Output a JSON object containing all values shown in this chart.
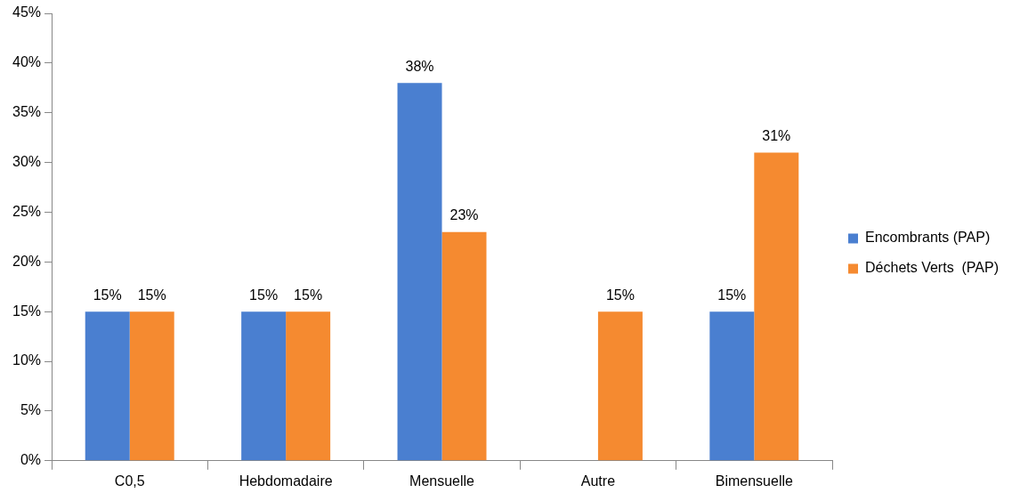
{
  "chart_data": {
    "type": "bar",
    "categories": [
      "C0,5",
      "Hebdomadaire",
      "Mensuelle",
      "Autre",
      "Bimensuelle"
    ],
    "series": [
      {
        "name": "Encombrants (PAP)",
        "color": "#4a7fd0",
        "values": [
          15,
          15,
          38,
          null,
          15
        ],
        "value_labels": [
          "15%",
          "15%",
          "38%",
          null,
          "15%"
        ]
      },
      {
        "name": "Déchets Verts  (PAP)",
        "color": "#f58a30",
        "values": [
          15,
          15,
          23,
          15,
          31
        ],
        "value_labels": [
          "15%",
          "15%",
          "23%",
          "15%",
          "31%"
        ]
      }
    ],
    "ylim": [
      0,
      45
    ],
    "yticks": [
      {
        "value": 0,
        "label": "0%"
      },
      {
        "value": 5,
        "label": "5%"
      },
      {
        "value": 10,
        "label": "10%"
      },
      {
        "value": 15,
        "label": "15%"
      },
      {
        "value": 20,
        "label": "20%"
      },
      {
        "value": 25,
        "label": "25%"
      },
      {
        "value": 30,
        "label": "30%"
      },
      {
        "value": 35,
        "label": "35%"
      },
      {
        "value": 40,
        "label": "40%"
      },
      {
        "value": 45,
        "label": "45%"
      }
    ],
    "grid": false,
    "legend": "right"
  }
}
